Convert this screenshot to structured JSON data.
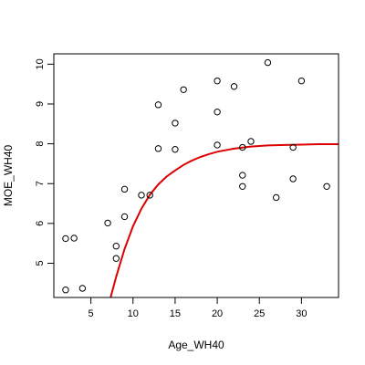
{
  "chart_data": {
    "type": "scatter",
    "xlabel": "Age_WH40",
    "ylabel": "MOE_WH40",
    "xlim": [
      0.6,
      34.4
    ],
    "ylim": [
      4.14,
      10.26
    ],
    "x_ticks": [
      5,
      10,
      15,
      20,
      25,
      30
    ],
    "y_ticks": [
      5,
      6,
      7,
      8,
      9,
      10
    ],
    "grid": false,
    "legend": "none",
    "series": [
      {
        "type": "scatter",
        "marker": "open-circle",
        "color": "#000000",
        "points": [
          {
            "x": 2,
            "y": 4.33
          },
          {
            "x": 4,
            "y": 4.37
          },
          {
            "x": 2,
            "y": 5.62
          },
          {
            "x": 3,
            "y": 5.63
          },
          {
            "x": 7,
            "y": 6.01
          },
          {
            "x": 8,
            "y": 5.43
          },
          {
            "x": 8,
            "y": 5.12
          },
          {
            "x": 9,
            "y": 6.17
          },
          {
            "x": 9,
            "y": 6.86
          },
          {
            "x": 11,
            "y": 6.71
          },
          {
            "x": 12,
            "y": 6.71
          },
          {
            "x": 13,
            "y": 8.98
          },
          {
            "x": 13,
            "y": 7.88
          },
          {
            "x": 15,
            "y": 8.52
          },
          {
            "x": 15,
            "y": 7.86
          },
          {
            "x": 16,
            "y": 9.36
          },
          {
            "x": 20,
            "y": 9.58
          },
          {
            "x": 20,
            "y": 8.8
          },
          {
            "x": 20,
            "y": 7.97
          },
          {
            "x": 22,
            "y": 9.44
          },
          {
            "x": 23,
            "y": 7.91
          },
          {
            "x": 23,
            "y": 7.21
          },
          {
            "x": 23,
            "y": 6.93
          },
          {
            "x": 24,
            "y": 8.06
          },
          {
            "x": 26,
            "y": 10.04
          },
          {
            "x": 27,
            "y": 6.65
          },
          {
            "x": 29,
            "y": 7.91
          },
          {
            "x": 29,
            "y": 7.12
          },
          {
            "x": 30,
            "y": 9.58
          },
          {
            "x": 33,
            "y": 6.93
          }
        ]
      },
      {
        "type": "line",
        "color": "#dd0000",
        "points": [
          {
            "x": 7.34,
            "y": 4.14
          },
          {
            "x": 8,
            "y": 4.66
          },
          {
            "x": 9,
            "y": 5.36
          },
          {
            "x": 10,
            "y": 5.93
          },
          {
            "x": 11,
            "y": 6.37
          },
          {
            "x": 12,
            "y": 6.72
          },
          {
            "x": 13,
            "y": 6.98
          },
          {
            "x": 14,
            "y": 7.18
          },
          {
            "x": 15,
            "y": 7.33
          },
          {
            "x": 16,
            "y": 7.47
          },
          {
            "x": 17,
            "y": 7.58
          },
          {
            "x": 18,
            "y": 7.67
          },
          {
            "x": 19,
            "y": 7.74
          },
          {
            "x": 20,
            "y": 7.8
          },
          {
            "x": 22,
            "y": 7.88
          },
          {
            "x": 24,
            "y": 7.93
          },
          {
            "x": 26,
            "y": 7.96
          },
          {
            "x": 28,
            "y": 7.97
          },
          {
            "x": 30,
            "y": 7.98
          },
          {
            "x": 32,
            "y": 7.99
          },
          {
            "x": 34.4,
            "y": 7.99
          }
        ]
      }
    ]
  }
}
